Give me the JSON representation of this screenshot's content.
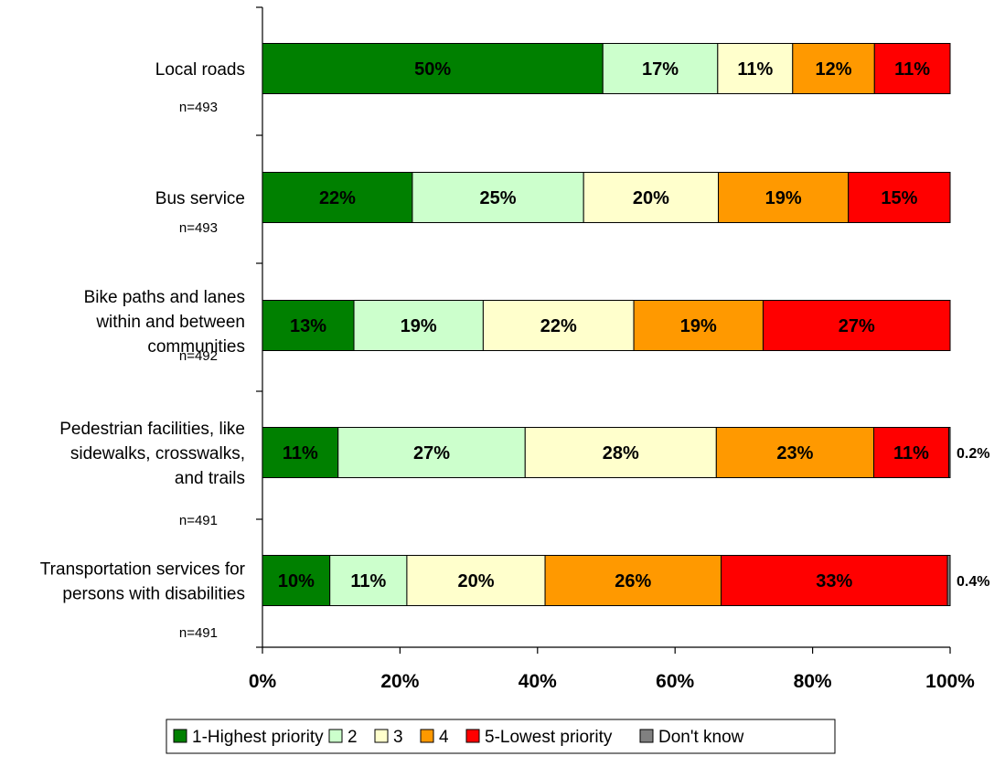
{
  "chart_data": {
    "type": "bar",
    "orientation": "horizontal-stacked-100",
    "categories": [
      {
        "lines": [
          "Local roads"
        ],
        "n": "n=493"
      },
      {
        "lines": [
          "Bus service"
        ],
        "n": "n=493"
      },
      {
        "lines": [
          "Bike paths and lanes",
          "within and between",
          "communities"
        ],
        "n": "n=492"
      },
      {
        "lines": [
          "Pedestrian facilities, like",
          "sidewalks, crosswalks,",
          "and trails"
        ],
        "n": "n=491"
      },
      {
        "lines": [
          "Transportation services for",
          "persons with disabilities"
        ],
        "n": "n=491"
      }
    ],
    "series": [
      {
        "name": "1-Highest priority",
        "color": "#008000",
        "values": [
          49.5,
          21.8,
          13.3,
          11.0,
          9.8
        ]
      },
      {
        "name": "2",
        "color": "#CCFFCC",
        "values": [
          16.7,
          24.9,
          18.8,
          27.2,
          11.2
        ]
      },
      {
        "name": "3",
        "color": "#FFFFCC",
        "values": [
          10.9,
          19.6,
          21.9,
          27.8,
          20.1
        ]
      },
      {
        "name": "4",
        "color": "#FF9900",
        "values": [
          11.9,
          18.9,
          18.8,
          22.9,
          25.6
        ]
      },
      {
        "name": "5-Lowest priority",
        "color": "#FF0000",
        "values": [
          11.0,
          14.8,
          27.2,
          10.9,
          32.9
        ]
      },
      {
        "name": "Don't know",
        "color": "#808080",
        "values": [
          0,
          0,
          0,
          0.2,
          0.4
        ]
      }
    ],
    "labels": [
      [
        "50%",
        "17%",
        "11%",
        "12%",
        "11%",
        ""
      ],
      [
        "22%",
        "25%",
        "20%",
        "19%",
        "15%",
        ""
      ],
      [
        "13%",
        "19%",
        "22%",
        "19%",
        "27%",
        ""
      ],
      [
        "11%",
        "27%",
        "28%",
        "23%",
        "11%",
        "0.2%"
      ],
      [
        "10%",
        "11%",
        "20%",
        "26%",
        "33%",
        "0.4%"
      ]
    ],
    "xticks": [
      "0%",
      "20%",
      "40%",
      "60%",
      "80%",
      "100%"
    ],
    "xlim": [
      0,
      100
    ],
    "grid": false,
    "legend_position": "bottom"
  }
}
